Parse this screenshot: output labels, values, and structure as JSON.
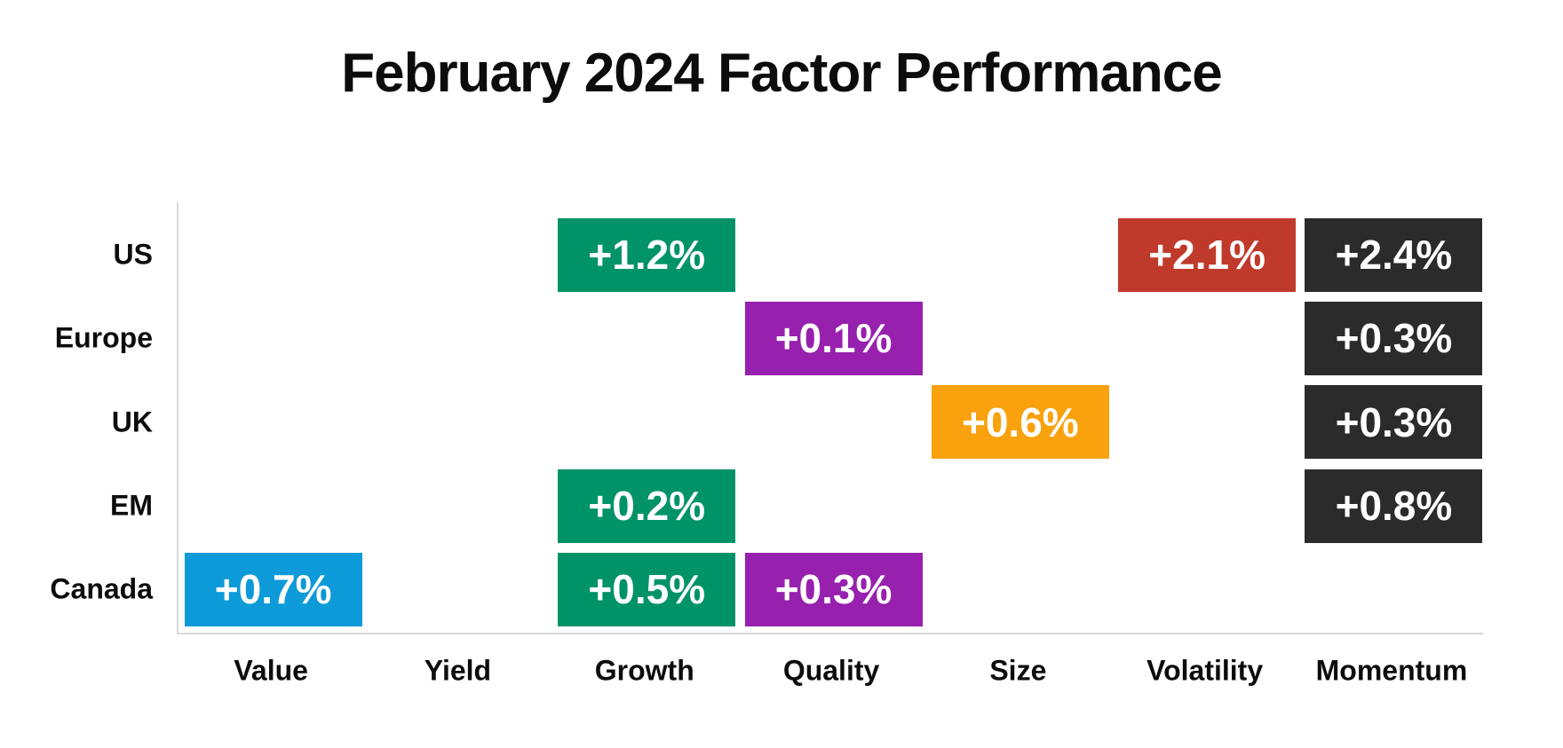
{
  "chart_data": {
    "type": "heatmap",
    "title": "February 2024 Factor Performance",
    "rows": [
      "US",
      "Europe",
      "UK",
      "EM",
      "Canada"
    ],
    "columns": [
      "Value",
      "Yield",
      "Growth",
      "Quality",
      "Size",
      "Volatility",
      "Momentum"
    ],
    "cells": [
      {
        "row": "US",
        "column": "Growth",
        "label": "+1.2%",
        "value": 1.2,
        "color": "#009368"
      },
      {
        "row": "US",
        "column": "Volatility",
        "label": "+2.1%",
        "value": 2.1,
        "color": "#c03a2b"
      },
      {
        "row": "US",
        "column": "Momentum",
        "label": "+2.4%",
        "value": 2.4,
        "color": "#2b2b2b"
      },
      {
        "row": "Europe",
        "column": "Quality",
        "label": "+0.1%",
        "value": 0.1,
        "color": "#9721ae"
      },
      {
        "row": "Europe",
        "column": "Momentum",
        "label": "+0.3%",
        "value": 0.3,
        "color": "#2b2b2b"
      },
      {
        "row": "UK",
        "column": "Size",
        "label": "+0.6%",
        "value": 0.6,
        "color": "#f9a20d"
      },
      {
        "row": "UK",
        "column": "Momentum",
        "label": "+0.3%",
        "value": 0.3,
        "color": "#2b2b2b"
      },
      {
        "row": "EM",
        "column": "Growth",
        "label": "+0.2%",
        "value": 0.2,
        "color": "#009368"
      },
      {
        "row": "EM",
        "column": "Momentum",
        "label": "+0.8%",
        "value": 0.8,
        "color": "#2b2b2b"
      },
      {
        "row": "Canada",
        "column": "Value",
        "label": "+0.7%",
        "value": 0.7,
        "color": "#0c9ad8"
      },
      {
        "row": "Canada",
        "column": "Growth",
        "label": "+0.5%",
        "value": 0.5,
        "color": "#009368"
      },
      {
        "row": "Canada",
        "column": "Quality",
        "label": "+0.3%",
        "value": 0.3,
        "color": "#9721ae"
      }
    ],
    "factor_colors": {
      "Value": "#0c9ad8",
      "Growth": "#009368",
      "Quality": "#9721ae",
      "Size": "#f9a20d",
      "Volatility": "#c03a2b",
      "Momentum": "#2b2b2b"
    },
    "value_text_color": "#ffffff",
    "axis_color": "#d9d9d9",
    "label_color": "#0c0c0c",
    "legend_position": "none",
    "grid": false
  }
}
